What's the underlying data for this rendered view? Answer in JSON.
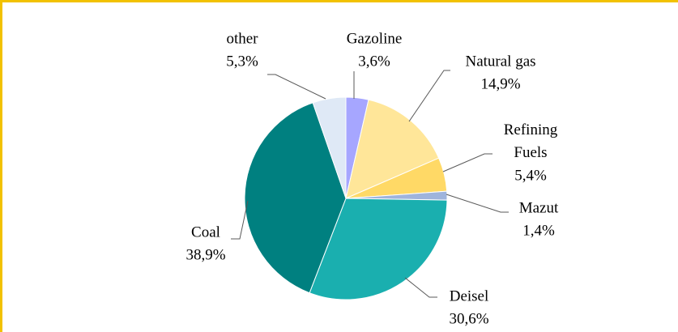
{
  "chart_data": {
    "type": "pie",
    "categories": [
      "Gazoline",
      "Natural gas",
      "Refining Fuels",
      "Mazut",
      "Deisel",
      "Coal",
      "other"
    ],
    "values": [
      3.6,
      14.9,
      5.4,
      1.4,
      30.6,
      38.9,
      5.3
    ],
    "value_labels": [
      "3,6%",
      "14,9%",
      "5,4%",
      "1,4%",
      "30,6%",
      "38,9%",
      "5,3%"
    ],
    "colors": [
      "#a6a6ff",
      "#ffe699",
      "#ffd966",
      "#9fb4dc",
      "#1aafaf",
      "#008080",
      "#dfe9f6"
    ]
  }
}
